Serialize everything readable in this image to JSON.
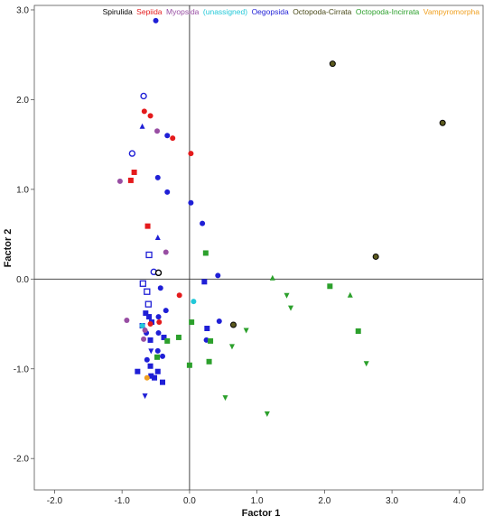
{
  "chart_data": {
    "type": "scatter",
    "xlabel": "Factor 1",
    "ylabel": "Factor 2",
    "xlim": [
      -2.3,
      4.35
    ],
    "ylim": [
      -2.35,
      3.05
    ],
    "x_ticks": [
      "-2.0",
      "-1.0",
      "0.0",
      "1.0",
      "2.0",
      "3.0",
      "4.0"
    ],
    "x_tick_values": [
      -2,
      -1,
      0,
      1,
      2,
      3,
      4
    ],
    "y_ticks": [
      "3.0",
      "2.0",
      "1.0",
      "0.0",
      "-1.0",
      "-2.0"
    ],
    "y_tick_values": [
      3,
      2,
      1,
      0,
      -1,
      -2
    ],
    "reference_lines": {
      "x": 0,
      "y": 0
    },
    "grid": false,
    "legend_position": "top-right",
    "legend": [
      {
        "label": "Spirulida",
        "color": "#000000"
      },
      {
        "label": "Sepiida",
        "color": "#e41a1c"
      },
      {
        "label": "Myopsida",
        "color": "#984ea3"
      },
      {
        "label": "(unassigned)",
        "color": "#22c8d8"
      },
      {
        "label": "Oegopsida",
        "color": "#1f1fd6"
      },
      {
        "label": "Octopoda-Cirrata",
        "color": "#4a4a1a"
      },
      {
        "label": "Octopoda-Incirrata",
        "color": "#2ca02c"
      },
      {
        "label": "Vampyromorpha",
        "color": "#f0a020"
      }
    ],
    "series": [
      {
        "group": "Oegopsida",
        "color": "#1f1fd6",
        "points": [
          {
            "x": -0.5,
            "y": 2.88,
            "m": "circle"
          },
          {
            "x": -0.68,
            "y": 2.04,
            "m": "circle-open"
          },
          {
            "x": -0.85,
            "y": 1.4,
            "m": "circle-open"
          },
          {
            "x": -0.7,
            "y": 1.7,
            "m": "triangle"
          },
          {
            "x": -0.33,
            "y": 1.6,
            "m": "circle"
          },
          {
            "x": -0.47,
            "y": 1.13,
            "m": "circle"
          },
          {
            "x": -0.33,
            "y": 0.97,
            "m": "circle"
          },
          {
            "x": 0.02,
            "y": 0.85,
            "m": "circle"
          },
          {
            "x": 0.19,
            "y": 0.62,
            "m": "circle"
          },
          {
            "x": -0.47,
            "y": 0.46,
            "m": "triangle"
          },
          {
            "x": -0.6,
            "y": 0.27,
            "m": "square-open"
          },
          {
            "x": -0.53,
            "y": 0.08,
            "m": "circle-open"
          },
          {
            "x": 0.42,
            "y": 0.04,
            "m": "circle"
          },
          {
            "x": -0.69,
            "y": -0.05,
            "m": "square-open"
          },
          {
            "x": -0.43,
            "y": -0.1,
            "m": "circle"
          },
          {
            "x": 0.22,
            "y": -0.03,
            "m": "square"
          },
          {
            "x": -0.63,
            "y": -0.14,
            "m": "square-open"
          },
          {
            "x": -0.61,
            "y": -0.28,
            "m": "square-open"
          },
          {
            "x": -0.35,
            "y": -0.35,
            "m": "circle"
          },
          {
            "x": -0.65,
            "y": -0.38,
            "m": "square"
          },
          {
            "x": -0.7,
            "y": -0.52,
            "m": "square"
          },
          {
            "x": -0.6,
            "y": -0.42,
            "m": "square"
          },
          {
            "x": -0.46,
            "y": -0.42,
            "m": "circle"
          },
          {
            "x": -0.56,
            "y": -0.48,
            "m": "square"
          },
          {
            "x": -0.64,
            "y": -0.6,
            "m": "circle"
          },
          {
            "x": -0.58,
            "y": -0.68,
            "m": "square"
          },
          {
            "x": -0.46,
            "y": -0.6,
            "m": "circle"
          },
          {
            "x": -0.38,
            "y": -0.65,
            "m": "square"
          },
          {
            "x": 0.26,
            "y": -0.55,
            "m": "square"
          },
          {
            "x": 0.44,
            "y": -0.47,
            "m": "circle"
          },
          {
            "x": 0.25,
            "y": -0.68,
            "m": "circle"
          },
          {
            "x": -0.63,
            "y": -0.9,
            "m": "circle"
          },
          {
            "x": -0.47,
            "y": -0.8,
            "m": "circle"
          },
          {
            "x": -0.4,
            "y": -0.86,
            "m": "circle"
          },
          {
            "x": -0.57,
            "y": -0.8,
            "m": "triangle-down"
          },
          {
            "x": -0.58,
            "y": -0.97,
            "m": "square"
          },
          {
            "x": -0.47,
            "y": -1.03,
            "m": "square"
          },
          {
            "x": -0.4,
            "y": -1.15,
            "m": "square"
          },
          {
            "x": -0.52,
            "y": -1.1,
            "m": "square"
          },
          {
            "x": -0.57,
            "y": -1.08,
            "m": "square"
          },
          {
            "x": -0.77,
            "y": -1.03,
            "m": "square"
          },
          {
            "x": -0.66,
            "y": -1.3,
            "m": "triangle-down"
          }
        ]
      },
      {
        "group": "Sepiida",
        "color": "#e41a1c",
        "points": [
          {
            "x": -0.67,
            "y": 1.87,
            "m": "circle"
          },
          {
            "x": -0.58,
            "y": 1.82,
            "m": "circle"
          },
          {
            "x": -0.25,
            "y": 1.57,
            "m": "circle"
          },
          {
            "x": 0.02,
            "y": 1.4,
            "m": "circle"
          },
          {
            "x": -0.82,
            "y": 1.19,
            "m": "square"
          },
          {
            "x": -0.87,
            "y": 1.1,
            "m": "square"
          },
          {
            "x": -0.62,
            "y": 0.59,
            "m": "square"
          },
          {
            "x": -0.15,
            "y": -0.18,
            "m": "circle"
          },
          {
            "x": -0.45,
            "y": -0.48,
            "m": "circle"
          },
          {
            "x": -0.58,
            "y": -0.5,
            "m": "circle"
          }
        ]
      },
      {
        "group": "Myopsida",
        "color": "#984ea3",
        "points": [
          {
            "x": -0.48,
            "y": 1.65,
            "m": "circle"
          },
          {
            "x": -1.03,
            "y": 1.09,
            "m": "circle"
          },
          {
            "x": -0.35,
            "y": 0.3,
            "m": "circle"
          },
          {
            "x": -0.93,
            "y": -0.46,
            "m": "circle"
          },
          {
            "x": -0.66,
            "y": -0.57,
            "m": "circle"
          },
          {
            "x": -0.68,
            "y": -0.67,
            "m": "circle"
          }
        ]
      },
      {
        "group": "(unassigned)",
        "color": "#22c8d8",
        "points": [
          {
            "x": 0.06,
            "y": -0.25,
            "m": "circle"
          },
          {
            "x": -0.7,
            "y": -0.52,
            "m": "circle"
          }
        ]
      },
      {
        "group": "Spirulida",
        "color": "#000000",
        "points": [
          {
            "x": -0.46,
            "y": 0.07,
            "m": "circle-open-black"
          }
        ]
      },
      {
        "group": "Octopoda-Cirrata",
        "color": "#4a4a1a",
        "points": [
          {
            "x": 2.12,
            "y": 2.4,
            "m": "circle-dark"
          },
          {
            "x": 3.75,
            "y": 1.74,
            "m": "circle-dark"
          },
          {
            "x": 2.76,
            "y": 0.25,
            "m": "circle-dark"
          },
          {
            "x": 0.65,
            "y": -0.51,
            "m": "circle-dark"
          }
        ]
      },
      {
        "group": "Octopoda-Incirrata",
        "color": "#2ca02c",
        "points": [
          {
            "x": 0.24,
            "y": 0.29,
            "m": "square"
          },
          {
            "x": 1.23,
            "y": 0.01,
            "m": "triangle"
          },
          {
            "x": 2.08,
            "y": -0.08,
            "m": "square"
          },
          {
            "x": 2.38,
            "y": -0.18,
            "m": "triangle"
          },
          {
            "x": 1.44,
            "y": -0.18,
            "m": "triangle-down"
          },
          {
            "x": 1.5,
            "y": -0.32,
            "m": "triangle-down"
          },
          {
            "x": 0.03,
            "y": -0.48,
            "m": "square"
          },
          {
            "x": 2.5,
            "y": -0.58,
            "m": "square"
          },
          {
            "x": 0.84,
            "y": -0.57,
            "m": "triangle-down"
          },
          {
            "x": -0.16,
            "y": -0.65,
            "m": "square"
          },
          {
            "x": -0.33,
            "y": -0.69,
            "m": "square"
          },
          {
            "x": 0.31,
            "y": -0.69,
            "m": "square"
          },
          {
            "x": 0.63,
            "y": -0.75,
            "m": "triangle-down"
          },
          {
            "x": -0.48,
            "y": -0.87,
            "m": "square"
          },
          {
            "x": 2.62,
            "y": -0.94,
            "m": "triangle-down"
          },
          {
            "x": 0.29,
            "y": -0.92,
            "m": "square"
          },
          {
            "x": 0.0,
            "y": -0.96,
            "m": "square"
          },
          {
            "x": 0.53,
            "y": -1.32,
            "m": "triangle-down"
          },
          {
            "x": 1.15,
            "y": -1.5,
            "m": "triangle-down"
          }
        ]
      },
      {
        "group": "Vampyromorpha",
        "color": "#f0a020",
        "points": [
          {
            "x": -0.63,
            "y": -1.1,
            "m": "circle"
          }
        ]
      }
    ]
  }
}
